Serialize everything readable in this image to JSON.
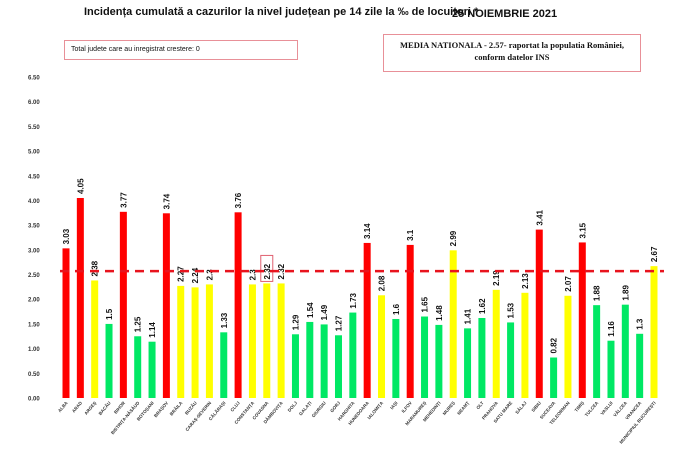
{
  "header": {
    "title": "Incidența cumulată a cazurilor la nivel județean pe 14 zile la ‰ de locuitori *",
    "date": "25 NOIEMBRIE 2021",
    "increase_box": "Total judete care au inregistrat crestere: 0",
    "national_box_line1": "MEDIA NATIONALA - 2.57-  raportat la populatia României,",
    "national_box_line2": "conform datelor INS"
  },
  "chart_data": {
    "type": "bar",
    "title": "Incidența cumulată a cazurilor la nivel județean pe 14 zile la ‰ de locuitori *",
    "ylim": [
      0,
      6.5
    ],
    "yticks": [
      "0.00",
      "0.50",
      "1.00",
      "1.50",
      "2.00",
      "2.50",
      "3.00",
      "3.50",
      "4.00",
      "4.50",
      "5.00",
      "5.50",
      "6.00",
      "6.50"
    ],
    "grid": false,
    "reference_line": {
      "value": 2.57,
      "color": "#e8141e",
      "style": "dashed"
    },
    "colors": {
      "red": "#ff0000",
      "yellow": "#ffff00",
      "green": "#00e864"
    },
    "categories": [
      "ALBA",
      "ARAD",
      "ARGEȘ",
      "BACĂU",
      "BIHOR",
      "BISTRIȚA-NĂSĂUD",
      "BOTOȘANI",
      "BRAȘOV",
      "BRĂILA",
      "BUZĂU",
      "CARAȘ-SEVERIN",
      "CĂLĂRAȘI",
      "CLUJ",
      "CONSTANȚA",
      "COVASNA",
      "DÂMBOVIȚA",
      "DOLJ",
      "GALAȚI",
      "GIURGIU",
      "GORJ",
      "HARGHITA",
      "HUNEDOARA",
      "IALOMIȚA",
      "IAȘI",
      "ILFOV",
      "MARAMUREȘ",
      "MEHEDINȚI",
      "MUREȘ",
      "NEAMȚ",
      "OLT",
      "PRAHOVA",
      "SATU MARE",
      "SĂLAJ",
      "SIBIU",
      "SUCEAVA",
      "TELEORMAN",
      "TIMIȘ",
      "TULCEA",
      "VASLUI",
      "VÂLCEA",
      "VRANCEA",
      "MUNICIPIUL BUCUREȘTI"
    ],
    "values": [
      3.03,
      4.05,
      2.38,
      1.5,
      3.77,
      1.25,
      1.14,
      3.74,
      2.27,
      2.24,
      2.3,
      1.33,
      3.76,
      2.3,
      2.32,
      2.32,
      1.29,
      1.54,
      1.49,
      1.27,
      1.73,
      3.14,
      2.08,
      1.6,
      3.1,
      1.65,
      1.48,
      2.99,
      1.41,
      1.62,
      2.19,
      1.53,
      2.13,
      3.41,
      0.82,
      2.07,
      3.15,
      1.88,
      1.16,
      1.89,
      1.3,
      2.67
    ],
    "value_labels": [
      "3.03",
      "4.05",
      "2.38",
      "1.5",
      "3.77",
      "1.25",
      "1.14",
      "3.74",
      "2.27",
      "2.24",
      "2.3",
      "1.33",
      "3.76",
      "2.3",
      "2.32",
      "2.32",
      "1.29",
      "1.54",
      "1.49",
      "1.27",
      "1.73",
      "3.14",
      "2.08",
      "1.6",
      "3.1",
      "1.65",
      "1.48",
      "2.99",
      "1.41",
      "1.62",
      "2.19",
      "1.53",
      "2.13",
      "3.41",
      "0.82",
      "2.07",
      "3.15",
      "1.88",
      "1.16",
      "1.89",
      "1.3",
      "2.67"
    ],
    "bar_colors": [
      "red",
      "red",
      "yellow",
      "green",
      "red",
      "green",
      "green",
      "red",
      "yellow",
      "yellow",
      "yellow",
      "green",
      "red",
      "yellow",
      "yellow",
      "yellow",
      "green",
      "green",
      "green",
      "green",
      "green",
      "red",
      "yellow",
      "green",
      "red",
      "green",
      "green",
      "yellow",
      "green",
      "green",
      "yellow",
      "green",
      "yellow",
      "red",
      "green",
      "yellow",
      "red",
      "green",
      "green",
      "green",
      "green",
      "yellow"
    ],
    "highlighted_label": "COVASNA"
  }
}
